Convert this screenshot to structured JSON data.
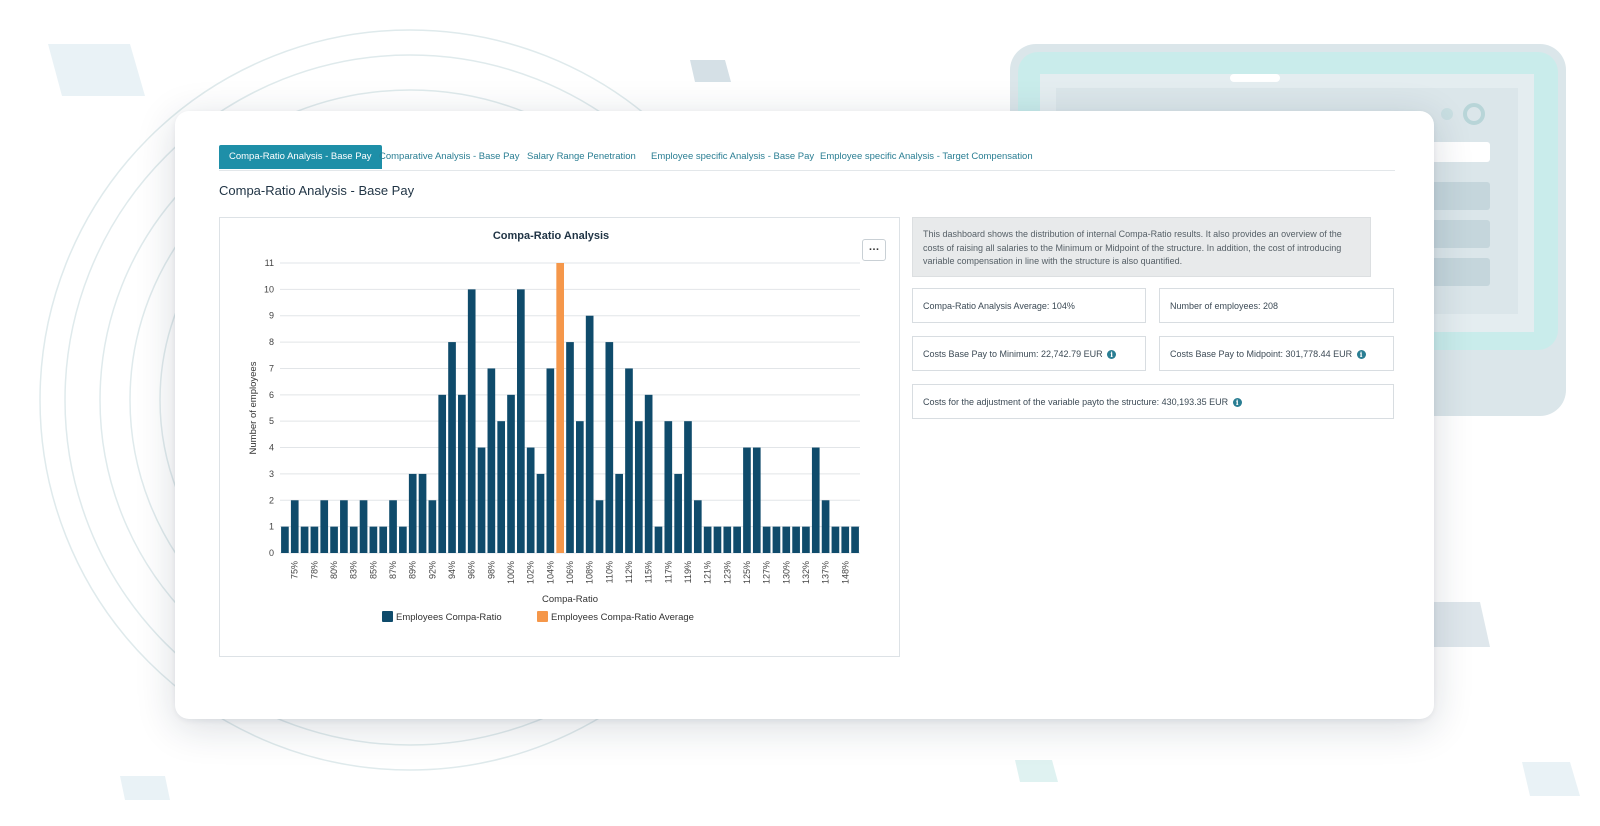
{
  "tabs": [
    {
      "label": "Compa-Ratio Analysis - Base Pay",
      "active": true
    },
    {
      "label": "Comparative Analysis - Base Pay",
      "active": false
    },
    {
      "label": "Salary Range Penetration",
      "active": false
    },
    {
      "label": "Employee specific Analysis - Base Pay",
      "active": false
    },
    {
      "label": "Employee specific Analysis - Target Compensation",
      "active": false
    }
  ],
  "page_title": "Compa-Ratio Analysis - Base Pay",
  "chart_menu_label": "…",
  "description": "This dashboard shows the distribution of internal Compa-Ratio results. It also provides an overview of the costs of raising all salaries to the Minimum or Midpoint of the structure. In addition, the cost of introducing variable compensation in line with the structure is also quantified.",
  "stats": {
    "average": "Compa-Ratio Analysis Average: 104%",
    "employees": "Number of employees: 208",
    "cost_minimum": "Costs Base Pay to Minimum: 22,742.79 EUR",
    "cost_midpoint": "Costs Base Pay to Midpoint: 301,778.44 EUR",
    "cost_variable": "Costs for the adjustment of the variable payto the structure: 430,193.35 EUR"
  },
  "colors": {
    "accent": "#1e8fa8",
    "bar": "#0f4b6b",
    "average_bar": "#f5974a"
  },
  "chart_data": {
    "type": "bar",
    "title": "Compa-Ratio Analysis",
    "xlabel": "Compa-Ratio",
    "ylabel": "Number of employees",
    "ylim": [
      0,
      11
    ],
    "yticks": [
      0,
      1,
      2,
      3,
      4,
      5,
      6,
      7,
      8,
      9,
      10,
      11
    ],
    "xtick_labels": [
      "75%",
      "78%",
      "80%",
      "83%",
      "85%",
      "87%",
      "89%",
      "92%",
      "94%",
      "96%",
      "98%",
      "100%",
      "102%",
      "104%",
      "106%",
      "108%",
      "110%",
      "112%",
      "115%",
      "117%",
      "119%",
      "121%",
      "123%",
      "125%",
      "127%",
      "130%",
      "132%",
      "137%",
      "148%"
    ],
    "values": [
      1,
      2,
      1,
      1,
      2,
      1,
      2,
      1,
      2,
      1,
      1,
      2,
      1,
      3,
      3,
      2,
      6,
      8,
      6,
      10,
      4,
      7,
      5,
      6,
      10,
      4,
      3,
      7,
      11,
      8,
      5,
      9,
      2,
      8,
      3,
      7,
      5,
      6,
      1,
      5,
      3,
      5,
      2,
      1,
      1,
      1,
      1,
      4,
      4,
      1,
      1,
      1,
      1,
      1,
      4,
      2,
      1,
      1,
      1
    ],
    "highlight_index": 28,
    "series": [
      {
        "name": "Employees Compa-Ratio"
      },
      {
        "name": "Employees Compa-Ratio Average"
      }
    ],
    "grid": true,
    "legend": "bottom-center"
  }
}
